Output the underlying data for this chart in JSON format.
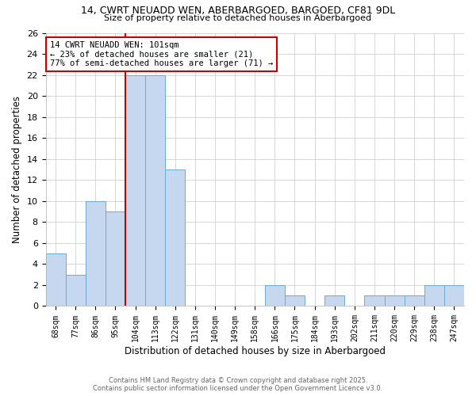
{
  "title1": "14, CWRT NEUADD WEN, ABERBARGOED, BARGOED, CF81 9DL",
  "title2": "Size of property relative to detached houses in Aberbargoed",
  "xlabel": "Distribution of detached houses by size in Aberbargoed",
  "ylabel": "Number of detached properties",
  "categories": [
    "68sqm",
    "77sqm",
    "86sqm",
    "95sqm",
    "104sqm",
    "113sqm",
    "122sqm",
    "131sqm",
    "140sqm",
    "149sqm",
    "158sqm",
    "166sqm",
    "175sqm",
    "184sqm",
    "193sqm",
    "202sqm",
    "211sqm",
    "220sqm",
    "229sqm",
    "238sqm",
    "247sqm"
  ],
  "values": [
    5,
    3,
    10,
    9,
    22,
    22,
    13,
    0,
    0,
    0,
    0,
    2,
    1,
    0,
    1,
    0,
    1,
    1,
    1,
    2,
    2
  ],
  "bar_color": "#c5d8ef",
  "bar_edge_color": "#6aaad4",
  "red_line_x": 3.5,
  "red_line_color": "#cc0000",
  "annotation_text": "14 CWRT NEUADD WEN: 101sqm\n← 23% of detached houses are smaller (21)\n77% of semi-detached houses are larger (71) →",
  "annotation_box_color": "#ffffff",
  "annotation_box_edge_color": "#cc0000",
  "ylim": [
    0,
    26
  ],
  "yticks": [
    0,
    2,
    4,
    6,
    8,
    10,
    12,
    14,
    16,
    18,
    20,
    22,
    24,
    26
  ],
  "footer1": "Contains HM Land Registry data © Crown copyright and database right 2025.",
  "footer2": "Contains public sector information licensed under the Open Government Licence v3.0.",
  "bg_color": "#ffffff",
  "grid_color": "#d0d0d0"
}
